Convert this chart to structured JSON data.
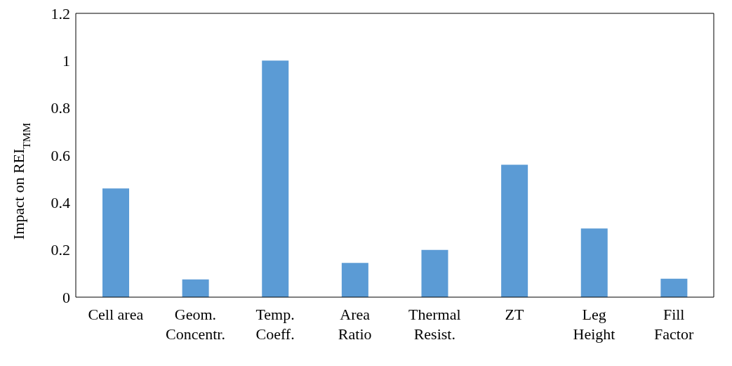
{
  "chart_data": {
    "type": "bar",
    "ylabel": "Impact on REI$_{TMM}$",
    "categories": [
      "Cell area",
      "Geom.\nConcentr.",
      "Temp.\nCoeff.",
      "Area\nRatio",
      "Thermal\nResist.",
      "ZT",
      "Leg\nHeight",
      "Fill\nFactor"
    ],
    "values": [
      0.46,
      0.075,
      1.0,
      0.145,
      0.2,
      0.56,
      0.29,
      0.078
    ],
    "color": "#5b9bd5",
    "ylim": [
      0,
      1.2
    ],
    "yticks": [
      0,
      0.2,
      0.4,
      0.6,
      0.8,
      1,
      1.2
    ],
    "grid": false
  }
}
